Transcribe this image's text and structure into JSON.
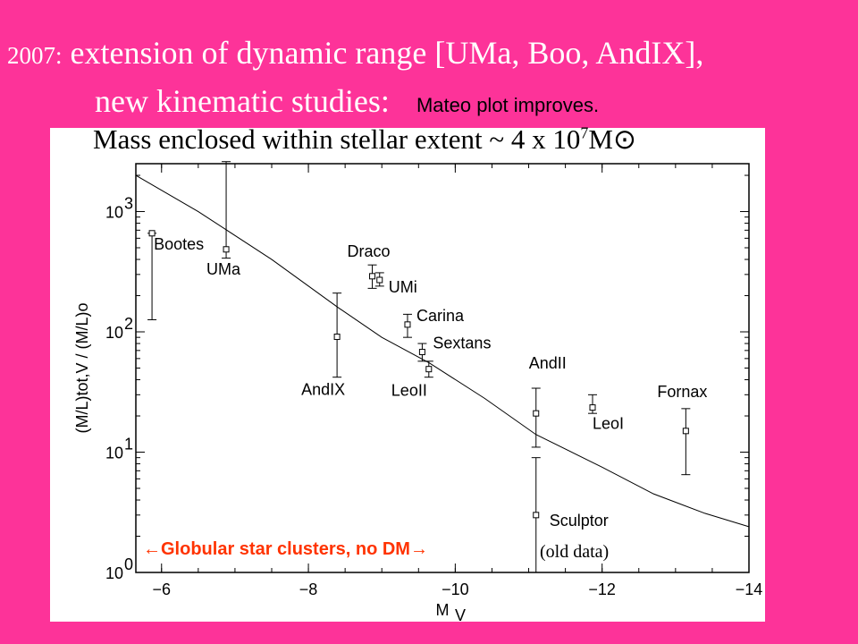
{
  "slide": {
    "year": "2007:",
    "line1": " extension of dynamic range [UMa, Boo, AndIX],",
    "line2": "new kinematic studies:",
    "note": "Mateo plot improves."
  },
  "chart_data": {
    "type": "scatter",
    "title": "Mass enclosed within stellar extent ~ 4 x 10",
    "title_exp": "7",
    "title_unit": "M⊙",
    "xlabel": "M",
    "xlabel_sub": "V",
    "ylabel": "(M/L)tot,V / (M/L)o",
    "xlim": [
      -5.65,
      -14
    ],
    "ylim": [
      1,
      2500
    ],
    "yscale": "log",
    "xticks": [
      -6,
      -8,
      -10,
      -12,
      -14
    ],
    "xtick_labels": [
      "−6",
      "−8",
      "−10",
      "−12",
      "−14"
    ],
    "yticks": [
      1,
      10,
      100,
      1000
    ],
    "ytick_labels": [
      "10",
      "10",
      "10",
      "10"
    ],
    "ytick_exps": [
      "0",
      "1",
      "2",
      "3"
    ],
    "points": [
      {
        "name": "Bootes",
        "x": -5.87,
        "y": 660,
        "ylo": 126,
        "yhi": 660
      },
      {
        "name": "UMa",
        "x": -6.88,
        "y": 485,
        "ylo": 410,
        "yhi": 2600
      },
      {
        "name": "AndIX",
        "x": -8.39,
        "y": 91,
        "ylo": 42,
        "yhi": 210
      },
      {
        "name": "Draco",
        "x": -8.87,
        "y": 290,
        "ylo": 230,
        "yhi": 360
      },
      {
        "name": "UMi",
        "x": -8.97,
        "y": 270,
        "ylo": 240,
        "yhi": 310
      },
      {
        "name": "Carina",
        "x": -9.35,
        "y": 115,
        "ylo": 90,
        "yhi": 140
      },
      {
        "name": "Sextans",
        "x": -9.55,
        "y": 68,
        "ylo": 57,
        "yhi": 80
      },
      {
        "name": "LeoII",
        "x": -9.64,
        "y": 49,
        "ylo": 42,
        "yhi": 57
      },
      {
        "name": "AndII",
        "x": -11.1,
        "y": 21,
        "ylo": 11,
        "yhi": 34
      },
      {
        "name": "Sculptor",
        "x": -11.1,
        "y": 3.0,
        "ylo": 1,
        "yhi": 9
      },
      {
        "name": "LeoI",
        "x": -11.87,
        "y": 23.5,
        "ylo": 21,
        "yhi": 30
      },
      {
        "name": "Fornax",
        "x": -13.14,
        "y": 15,
        "ylo": 6.5,
        "yhi": 23
      }
    ],
    "curve": {
      "x": [
        -5.65,
        -6.5,
        -7.5,
        -8.4,
        -9,
        -9.65,
        -10.4,
        -11.1,
        -12,
        -12.7,
        -13.4,
        -14
      ],
      "y": [
        2000,
        1000,
        400,
        160,
        90,
        55,
        28,
        14,
        7.5,
        4.5,
        3.1,
        2.4
      ]
    },
    "annotations": {
      "globular": "←Globular star clusters, no DM→",
      "old_data": "(old data)"
    },
    "colors": {
      "background": "#fd3399",
      "annotation": "#ff3300"
    }
  }
}
